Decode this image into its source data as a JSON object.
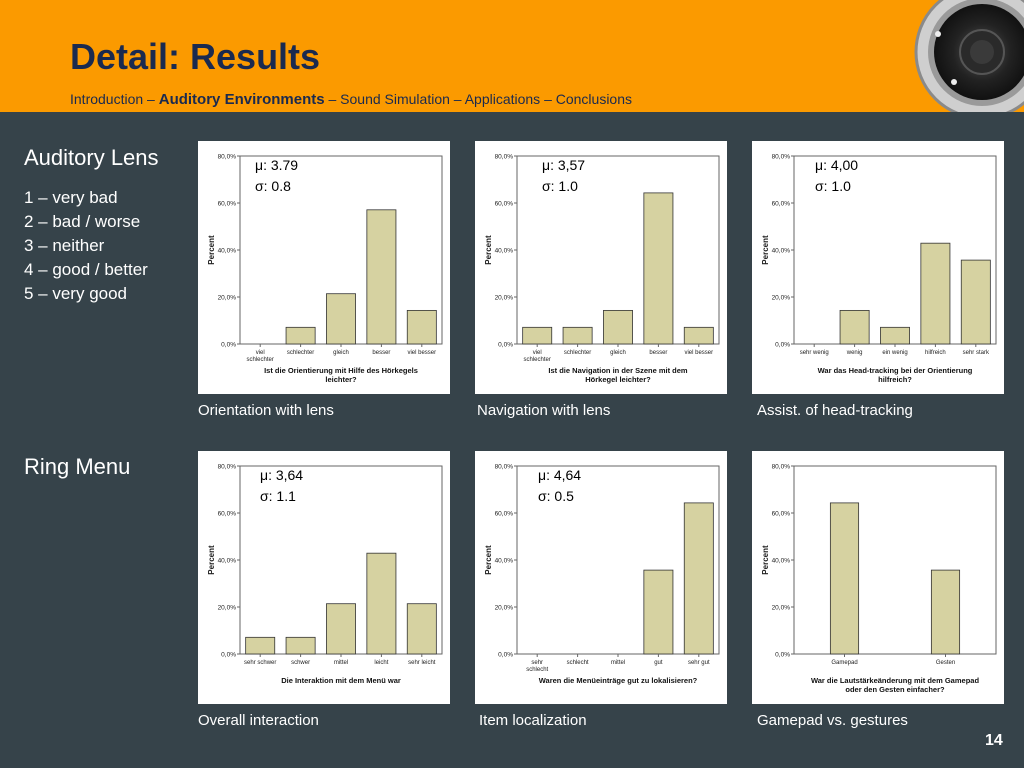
{
  "slide": {
    "title": "Detail: Results",
    "nav": {
      "before": "Introduction – ",
      "active": "Auditory Environments",
      "after": " – Sound Simulation – Applications – Conclusions"
    },
    "section_lens": "Auditory Lens",
    "section_ring": "Ring Menu",
    "scale": [
      "1 – very bad",
      "2 – bad / worse",
      "3 – neither",
      "4 – good / better",
      "5 – very good"
    ],
    "page_number": "14",
    "colors": {
      "header": "#fb9a00",
      "background": "#36434a",
      "title": "#1a2a4f",
      "bar": "#d6d2a1"
    }
  },
  "chart_data": [
    {
      "type": "bar",
      "caption": "Orientation with lens",
      "stats": {
        "mean": "μ: 3.79",
        "sd": "σ: 0.8"
      },
      "title": "Ist die Orientierung mit Hilfe des Hörkegels leichter?",
      "ylabel": "Percent",
      "categories": [
        "viel schlechter",
        "schlechter",
        "gleich",
        "besser",
        "viel besser"
      ],
      "values": [
        0,
        7.1,
        21.4,
        57.1,
        14.3
      ],
      "ylim": [
        0,
        80
      ],
      "yticks": [
        "0,0%",
        "20,0%",
        "40,0%",
        "60,0%",
        "80,0%"
      ]
    },
    {
      "type": "bar",
      "caption": "Navigation with lens",
      "stats": {
        "mean": "μ: 3,57",
        "sd": "σ: 1.0"
      },
      "title": "Ist die Navigation in der Szene mit dem Hörkegel leichter?",
      "ylabel": "Percent",
      "categories": [
        "viel schlechter",
        "schlechter",
        "gleich",
        "besser",
        "viel besser"
      ],
      "values": [
        7.1,
        7.1,
        14.3,
        64.3,
        7.1
      ],
      "ylim": [
        0,
        80
      ],
      "yticks": [
        "0,0%",
        "20,0%",
        "40,0%",
        "60,0%",
        "80,0%"
      ]
    },
    {
      "type": "bar",
      "caption": "Assist. of head-tracking",
      "stats": {
        "mean": "μ: 4,00",
        "sd": "σ: 1.0"
      },
      "title": "War das Head-tracking bei der Orientierung hilfreich?",
      "ylabel": "Percent",
      "categories": [
        "sehr wenig",
        "wenig",
        "ein wenig",
        "hilfreich",
        "sehr stark"
      ],
      "values": [
        0,
        14.3,
        7.1,
        42.9,
        35.7
      ],
      "ylim": [
        0,
        80
      ],
      "yticks": [
        "0,0%",
        "20,0%",
        "40,0%",
        "60,0%",
        "80,0%"
      ]
    },
    {
      "type": "bar",
      "caption": "Overall interaction",
      "stats": {
        "mean": "μ: 3,64",
        "sd": "σ: 1.1"
      },
      "title": "Die Interaktion mit dem Menü war",
      "ylabel": "Percent",
      "categories": [
        "sehr schwer",
        "schwer",
        "mittel",
        "leicht",
        "sehr leicht"
      ],
      "values": [
        7.1,
        7.1,
        21.4,
        42.9,
        21.4
      ],
      "ylim": [
        0,
        80
      ],
      "yticks": [
        "0,0%",
        "20,0%",
        "40,0%",
        "60,0%",
        "80,0%"
      ]
    },
    {
      "type": "bar",
      "caption": "Item localization",
      "stats": {
        "mean": "μ: 4,64",
        "sd": "σ: 0.5"
      },
      "title": "Waren die Menüeinträge gut zu lokalisieren?",
      "ylabel": "Percent",
      "categories": [
        "sehr schlecht",
        "schlecht",
        "mittel",
        "gut",
        "sehr gut"
      ],
      "values": [
        0,
        0,
        0,
        35.7,
        64.3
      ],
      "ylim": [
        0,
        80
      ],
      "yticks": [
        "0,0%",
        "20,0%",
        "40,0%",
        "60,0%",
        "80,0%"
      ]
    },
    {
      "type": "bar",
      "caption": "Gamepad vs. gestures",
      "stats": {
        "mean": "",
        "sd": ""
      },
      "title": "War die Lautstärkeänderung mit dem Gamepad oder den Gesten einfacher?",
      "ylabel": "Percent",
      "categories": [
        "Gamepad",
        "Gesten"
      ],
      "values": [
        64.3,
        35.7
      ],
      "ylim": [
        0,
        80
      ],
      "yticks": [
        "0,0%",
        "20,0%",
        "40,0%",
        "60,0%",
        "80,0%"
      ]
    }
  ]
}
